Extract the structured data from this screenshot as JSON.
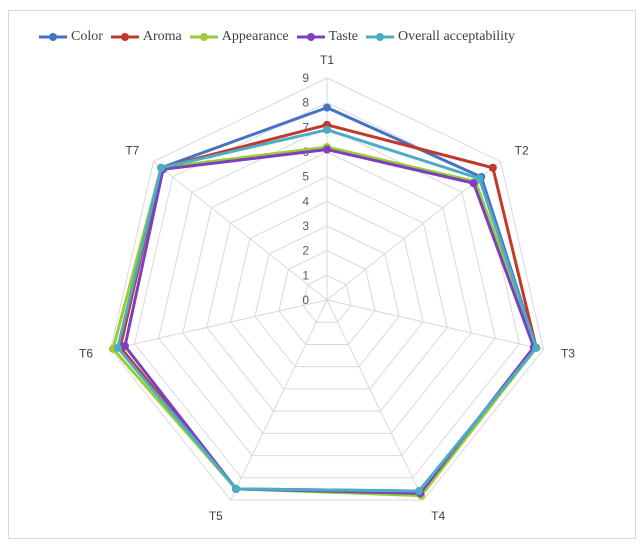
{
  "chart_data": {
    "type": "radar",
    "categories": [
      "T1",
      "T2",
      "T3",
      "T4",
      "T5",
      "T6",
      "T7"
    ],
    "rlim": [
      0,
      9
    ],
    "ticks": [
      "0",
      "1",
      "2",
      "3",
      "4",
      "5",
      "6",
      "7",
      "8",
      "9"
    ],
    "grid": true,
    "legend_position": "top",
    "series": [
      {
        "name": "Color",
        "color": "#4472C4",
        "values": [
          7.8,
          8.0,
          8.7,
          8.6,
          8.5,
          8.6,
          8.6
        ]
      },
      {
        "name": "Aroma",
        "color": "#C0392B",
        "values": [
          7.1,
          8.6,
          8.7,
          8.7,
          8.5,
          8.6,
          8.6
        ]
      },
      {
        "name": "Appearance",
        "color": "#9ACD32",
        "values": [
          6.2,
          7.7,
          8.7,
          8.8,
          8.5,
          8.9,
          8.6
        ]
      },
      {
        "name": "Taste",
        "color": "#7E3FBF",
        "values": [
          6.1,
          7.6,
          8.6,
          8.7,
          8.5,
          8.4,
          8.5
        ]
      },
      {
        "name": "Overall acceptability",
        "color": "#4BACC6",
        "values": [
          6.9,
          7.9,
          8.7,
          8.6,
          8.5,
          8.7,
          8.6
        ]
      }
    ]
  }
}
